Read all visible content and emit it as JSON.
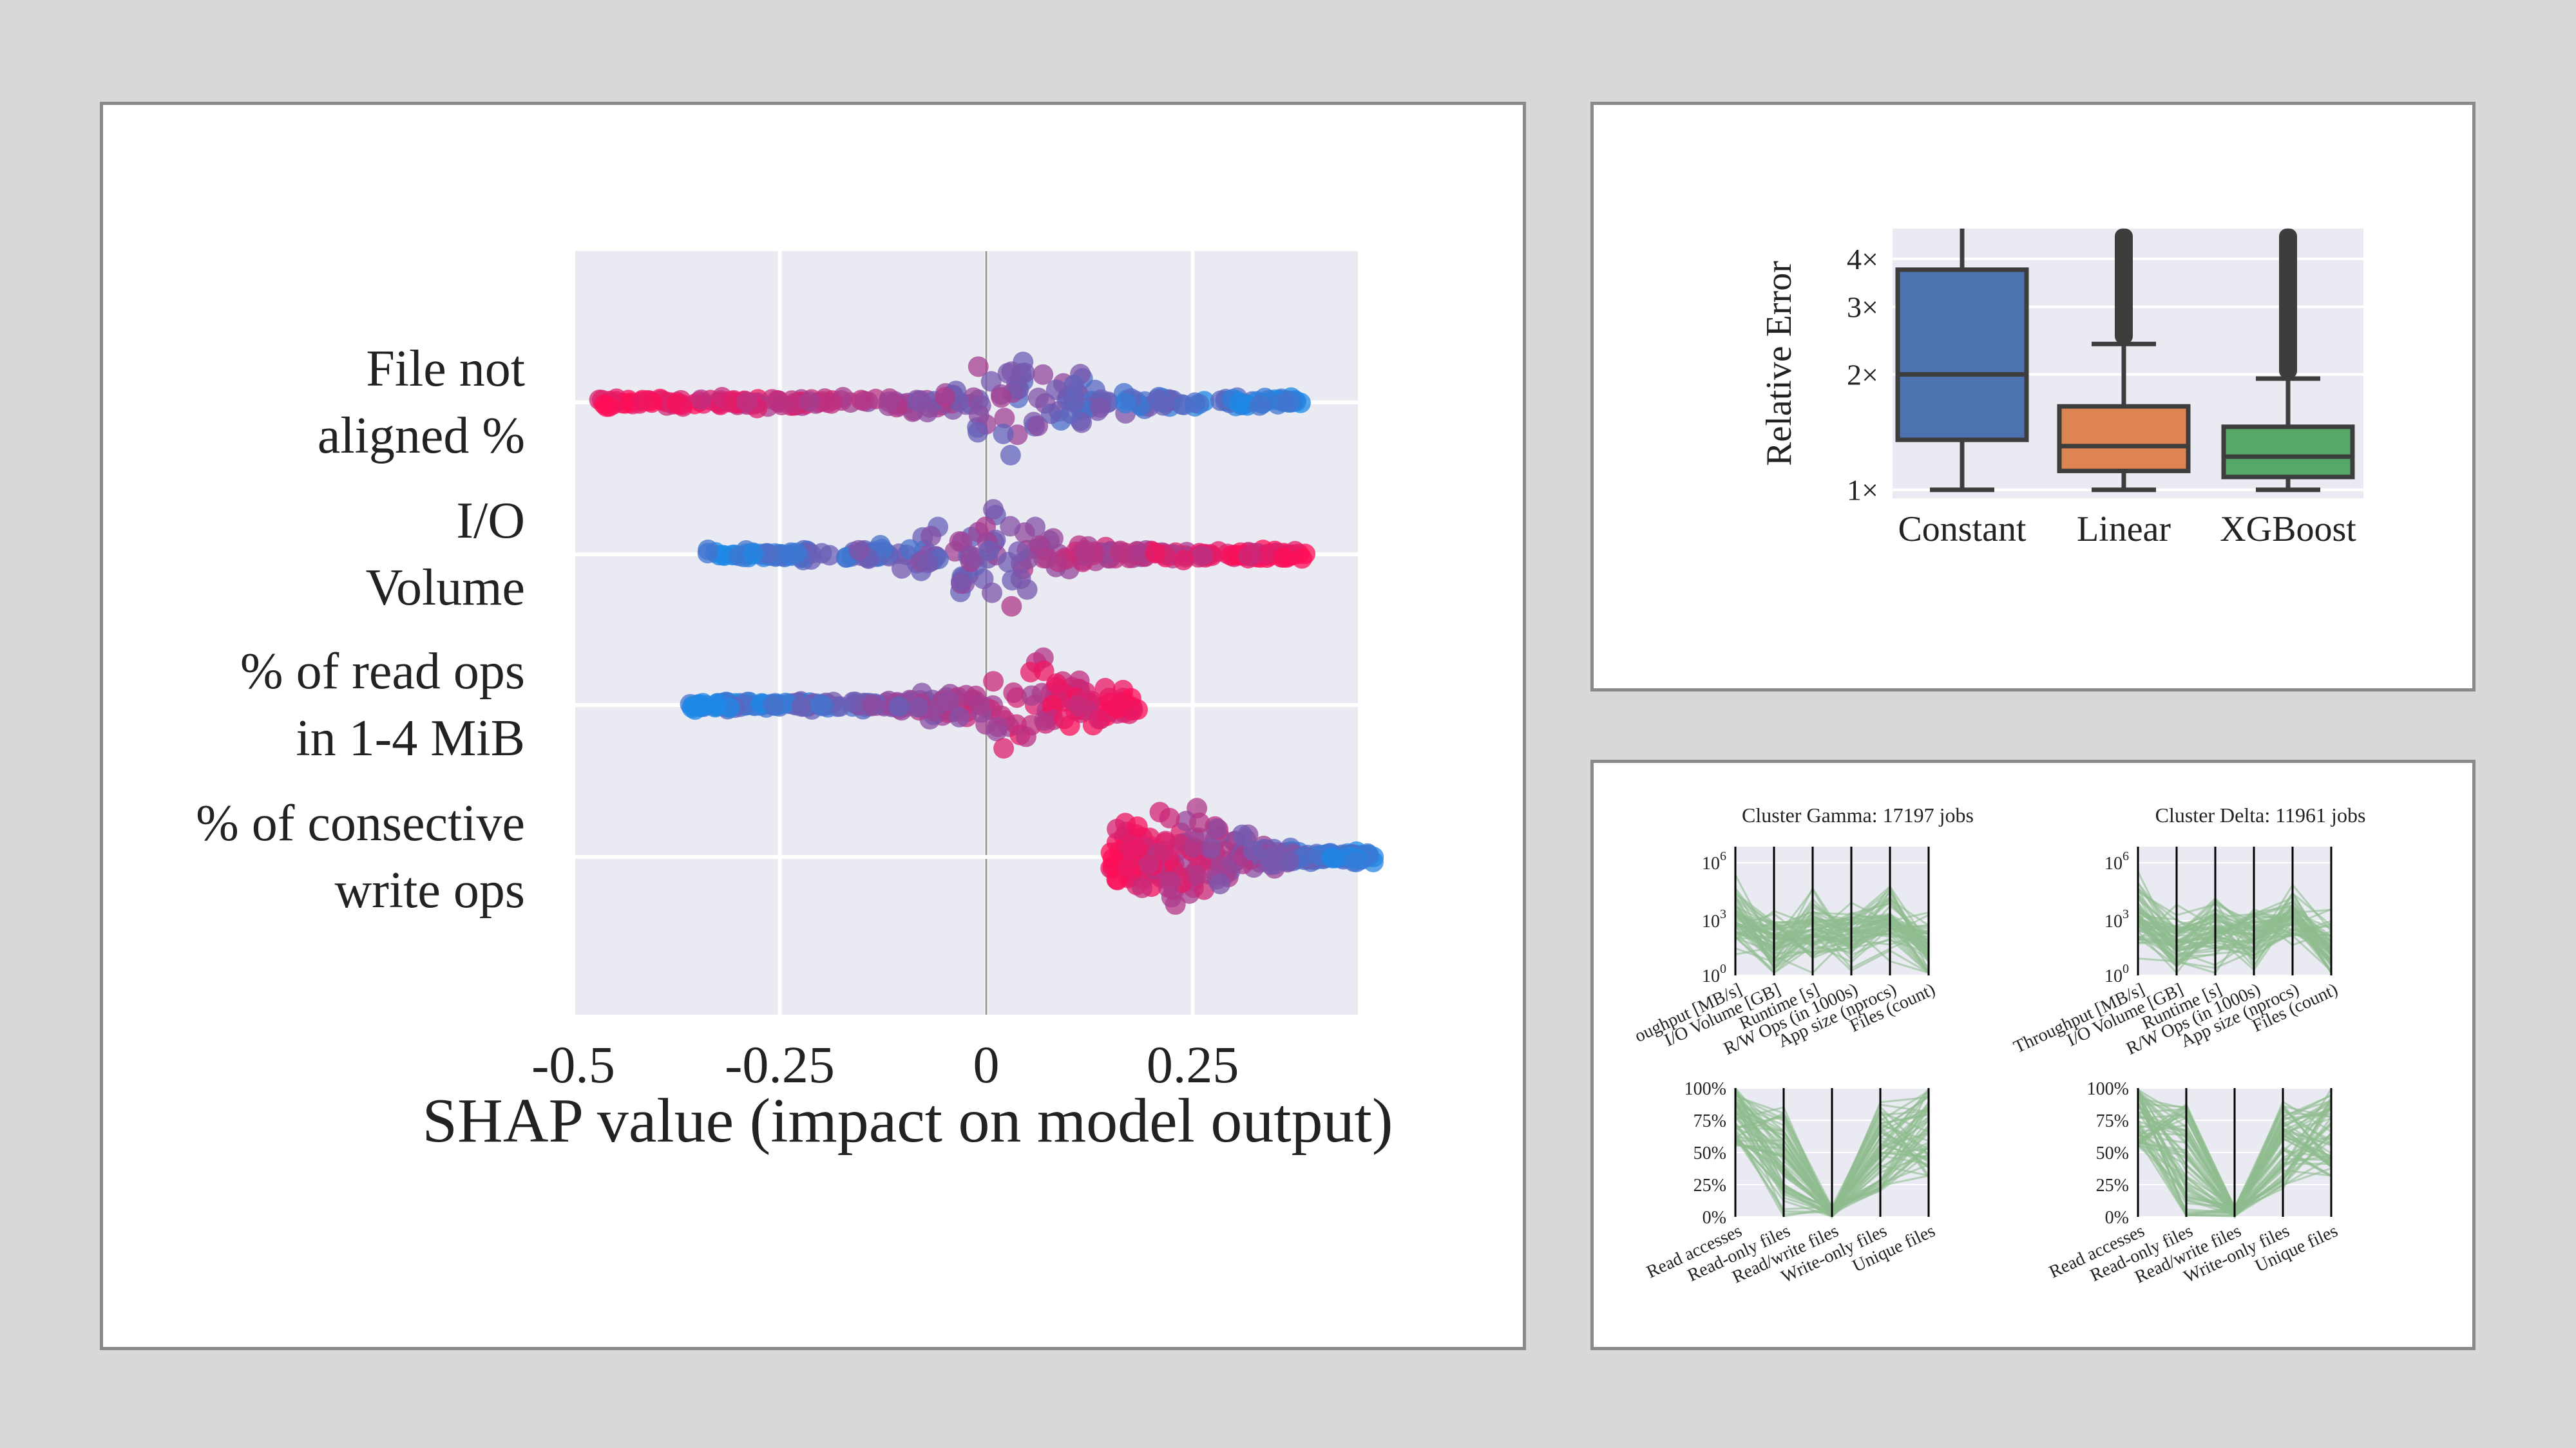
{
  "chart_data": [
    {
      "type": "scatter",
      "subtype": "shap-beeswarm",
      "xlabel": "SHAP value (impact on model output)",
      "xlim": [
        -0.5,
        0.45
      ],
      "x_ticks": [
        "-0.5",
        "-0.25",
        "0",
        "0.25"
      ],
      "x_tick_values": [
        -0.5,
        -0.25,
        0,
        0.25
      ],
      "features": [
        {
          "name": "File not aligned %",
          "label_lines": [
            "File not",
            "aligned %"
          ],
          "range": [
            -0.47,
            0.39
          ],
          "low_value_side": "right"
        },
        {
          "name": "I/O Volume",
          "label_lines": [
            "I/O",
            "Volume"
          ],
          "range": [
            -0.35,
            0.39
          ],
          "low_value_side": "left"
        },
        {
          "name": "% of read ops in 1-4 MiB",
          "label_lines": [
            "% of read ops",
            "in 1-4 MiB"
          ],
          "range": [
            -0.36,
            0.19
          ],
          "low_value_side": "left"
        },
        {
          "name": "% of consective write ops",
          "label_lines": [
            "% of consective",
            "write ops"
          ],
          "range": [
            0.15,
            0.47
          ],
          "low_value_side": "right"
        }
      ],
      "colors": {
        "high": "#ff0d57",
        "low": "#1e88e5"
      },
      "grid": true
    },
    {
      "type": "box",
      "ylabel": "Relative Error",
      "yscale": "log",
      "ylim": [
        0.95,
        4.8
      ],
      "y_ticks": [
        "1×",
        "2×",
        "3×",
        "4×"
      ],
      "y_tick_values": [
        1,
        2,
        3,
        4
      ],
      "categories": [
        "Constant",
        "Linear",
        "XGBoost"
      ],
      "boxes": [
        {
          "name": "Constant",
          "whislo": 1.0,
          "q1": 1.35,
          "median": 2.0,
          "q3": 3.75,
          "whishi": 5.2,
          "color": "#4c72b0",
          "outliers": false
        },
        {
          "name": "Linear",
          "whislo": 1.0,
          "q1": 1.12,
          "median": 1.3,
          "q3": 1.65,
          "whishi": 2.4,
          "color": "#dd8452",
          "outliers": true
        },
        {
          "name": "XGBoost",
          "whislo": 1.0,
          "q1": 1.08,
          "median": 1.22,
          "q3": 1.46,
          "whishi": 1.95,
          "color": "#55a868",
          "outliers": true
        }
      ]
    },
    {
      "type": "parallel-coordinates",
      "title": "Cluster Gamma: 17197 jobs",
      "top": {
        "axes": [
          "oughput [MB/s]",
          "I/O Volume [GB]",
          "Runtime [s]",
          "R/W Ops (in 1000s)",
          "App size (nprocs)",
          "Files (count)"
        ],
        "y_ticks": [
          "10^6",
          "10^3",
          "10^0"
        ]
      },
      "bottom": {
        "axes": [
          "Read accesses",
          "Read-only files",
          "Read/write files",
          "Write-only files",
          "Unique files"
        ],
        "y_ticks": [
          "100%",
          "75%",
          "50%",
          "25%",
          "0%"
        ]
      },
      "line_color": "#8fbc8f"
    },
    {
      "type": "parallel-coordinates",
      "title": "Cluster Delta: 11961 jobs",
      "top": {
        "axes": [
          "Throughput [MB/s]",
          "I/O Volume [GB]",
          "Runtime [s]",
          "R/W Ops (in 1000s)",
          "App size (nprocs)",
          "Files (count)"
        ],
        "y_ticks": [
          "10^6",
          "10^3",
          "10^0"
        ]
      },
      "bottom": {
        "axes": [
          "Read accesses",
          "Read-only files",
          "Read/write files",
          "Write-only files",
          "Unique files"
        ],
        "y_ticks": [
          "100%",
          "75%",
          "50%",
          "25%",
          "0%"
        ]
      },
      "line_color": "#8fbc8f"
    }
  ]
}
